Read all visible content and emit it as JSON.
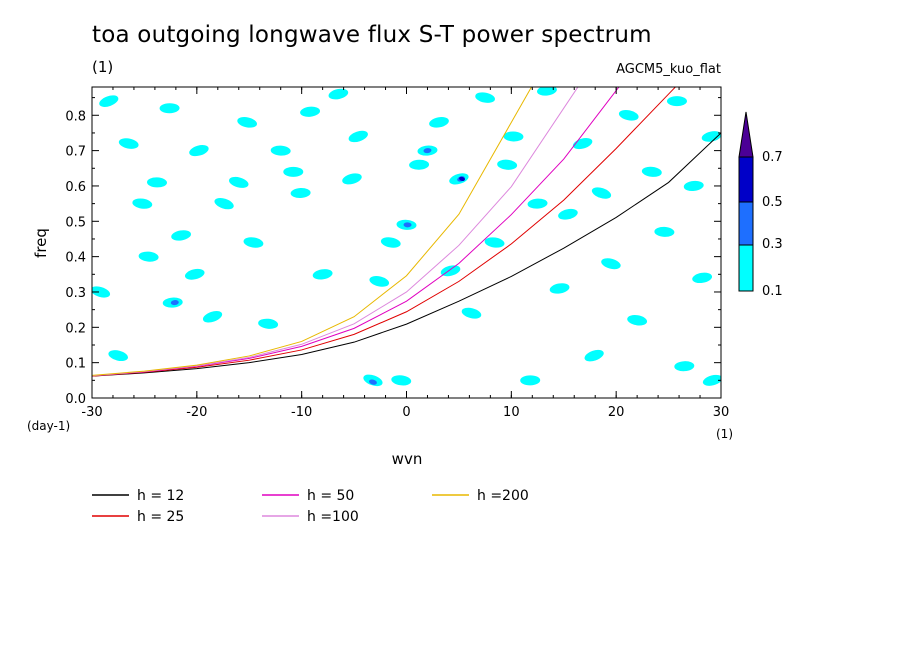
{
  "title": "toa outgoing longwave flux S-T power spectrum",
  "subtitle_left": "(1)",
  "subtitle_right": "AGCM5_kuo_flat",
  "colors": {
    "c01": "#00ffff",
    "c03": "#1e6fff",
    "c05": "#0000c8",
    "c07": "#4b0096"
  },
  "colorbar": {
    "levels": [
      "0.1",
      "0.3",
      "0.5",
      "0.7"
    ]
  },
  "chart_data": {
    "type": "line",
    "title": "toa outgoing longwave flux S-T power spectrum",
    "xlabel": "wvn",
    "ylabel": "freq",
    "x_unit_label": "(1)",
    "y_unit_label": "(day-1)",
    "xlim": [
      -30,
      30
    ],
    "ylim": [
      0,
      0.88
    ],
    "xticks": [
      -30,
      -20,
      -10,
      0,
      10,
      20,
      30
    ],
    "xtick_labels": [
      "-30",
      "-20",
      "-10",
      "0",
      "10",
      "20",
      "30"
    ],
    "yticks": [
      0,
      0.1,
      0.2,
      0.3,
      0.4,
      0.5,
      0.6,
      0.7,
      0.8
    ],
    "ytick_labels": [
      "0.0",
      "0.1",
      "0.2",
      "0.3",
      "0.4",
      "0.5",
      "0.6",
      "0.7",
      "0.8"
    ],
    "x": [
      -30,
      -25,
      -20,
      -15,
      -10,
      -5,
      0,
      5,
      10,
      15,
      20,
      25,
      30
    ],
    "series": [
      {
        "name": "h = 12",
        "color": "#000000",
        "values": [
          0.062,
          0.071,
          0.083,
          0.1,
          0.123,
          0.158,
          0.209,
          0.274,
          0.344,
          0.424,
          0.511,
          0.61,
          0.75
        ]
      },
      {
        "name": "h = 25",
        "color": "#e00000",
        "values": [
          0.062,
          0.073,
          0.087,
          0.107,
          0.136,
          0.18,
          0.244,
          0.33,
          0.436,
          0.56,
          0.706,
          0.86,
          null
        ]
      },
      {
        "name": "h = 50",
        "color": "#e000c0",
        "values": [
          0.063,
          0.074,
          0.09,
          0.112,
          0.146,
          0.197,
          0.274,
          0.381,
          0.519,
          0.676,
          0.87,
          null,
          null
        ]
      },
      {
        "name": "h =100",
        "color": "#dd88dd",
        "values": [
          0.063,
          0.075,
          0.091,
          0.115,
          0.152,
          0.21,
          0.3,
          0.432,
          0.598,
          0.82,
          null,
          null,
          null
        ]
      },
      {
        "name": "h =200",
        "color": "#e8b800",
        "values": [
          0.064,
          0.076,
          0.093,
          0.119,
          0.16,
          0.23,
          0.346,
          0.52,
          0.78,
          null,
          null,
          null,
          null
        ]
      }
    ],
    "contours": {
      "levels": [
        0.1,
        0.3,
        0.5,
        0.7
      ],
      "patches": [
        {
          "x": -28.4,
          "y": 0.84,
          "level": 0.1
        },
        {
          "x": -29.2,
          "y": 0.3,
          "level": 0.1
        },
        {
          "x": -27.5,
          "y": 0.12,
          "level": 0.1
        },
        {
          "x": -26.5,
          "y": 0.72,
          "level": 0.1
        },
        {
          "x": -25.2,
          "y": 0.55,
          "level": 0.1
        },
        {
          "x": -24.6,
          "y": 0.4,
          "level": 0.1
        },
        {
          "x": -23.8,
          "y": 0.61,
          "level": 0.1
        },
        {
          "x": -22.6,
          "y": 0.82,
          "level": 0.1
        },
        {
          "x": -22.3,
          "y": 0.27,
          "level": 0.1
        },
        {
          "x": -22.1,
          "y": 0.27,
          "level": 0.3
        },
        {
          "x": -21.5,
          "y": 0.46,
          "level": 0.1
        },
        {
          "x": -20.2,
          "y": 0.35,
          "level": 0.1
        },
        {
          "x": -19.8,
          "y": 0.7,
          "level": 0.1
        },
        {
          "x": -18.5,
          "y": 0.23,
          "level": 0.1
        },
        {
          "x": -17.4,
          "y": 0.55,
          "level": 0.1
        },
        {
          "x": -16.0,
          "y": 0.61,
          "level": 0.1
        },
        {
          "x": -15.2,
          "y": 0.78,
          "level": 0.1
        },
        {
          "x": -14.6,
          "y": 0.44,
          "level": 0.1
        },
        {
          "x": -13.2,
          "y": 0.21,
          "level": 0.1
        },
        {
          "x": -12.0,
          "y": 0.7,
          "level": 0.1
        },
        {
          "x": -10.8,
          "y": 0.64,
          "level": 0.1
        },
        {
          "x": -10.1,
          "y": 0.58,
          "level": 0.1
        },
        {
          "x": -9.2,
          "y": 0.81,
          "level": 0.1
        },
        {
          "x": -8.0,
          "y": 0.35,
          "level": 0.1
        },
        {
          "x": -6.5,
          "y": 0.86,
          "level": 0.1
        },
        {
          "x": -5.2,
          "y": 0.62,
          "level": 0.1
        },
        {
          "x": -4.6,
          "y": 0.74,
          "level": 0.1
        },
        {
          "x": -3.2,
          "y": 0.05,
          "level": 0.1
        },
        {
          "x": -3.2,
          "y": 0.045,
          "level": 0.3
        },
        {
          "x": -2.6,
          "y": 0.33,
          "level": 0.1
        },
        {
          "x": -1.5,
          "y": 0.44,
          "level": 0.1
        },
        {
          "x": -0.5,
          "y": 0.05,
          "level": 0.1
        },
        {
          "x": 0.0,
          "y": 0.49,
          "level": 0.1
        },
        {
          "x": 0.1,
          "y": 0.49,
          "level": 0.3
        },
        {
          "x": 1.2,
          "y": 0.66,
          "level": 0.1
        },
        {
          "x": 2.0,
          "y": 0.7,
          "level": 0.1
        },
        {
          "x": 2.0,
          "y": 0.7,
          "level": 0.3
        },
        {
          "x": 3.1,
          "y": 0.78,
          "level": 0.1
        },
        {
          "x": 4.2,
          "y": 0.36,
          "level": 0.1
        },
        {
          "x": 5.0,
          "y": 0.62,
          "level": 0.1
        },
        {
          "x": 5.2,
          "y": 0.62,
          "level": 0.3
        },
        {
          "x": 5.3,
          "y": 0.62,
          "level": 0.5
        },
        {
          "x": 6.2,
          "y": 0.24,
          "level": 0.1
        },
        {
          "x": 7.5,
          "y": 0.85,
          "level": 0.1
        },
        {
          "x": 8.4,
          "y": 0.44,
          "level": 0.1
        },
        {
          "x": 9.6,
          "y": 0.66,
          "level": 0.1
        },
        {
          "x": 10.2,
          "y": 0.74,
          "level": 0.1
        },
        {
          "x": 11.8,
          "y": 0.05,
          "level": 0.1
        },
        {
          "x": 12.5,
          "y": 0.55,
          "level": 0.1
        },
        {
          "x": 13.4,
          "y": 0.87,
          "level": 0.1
        },
        {
          "x": 14.6,
          "y": 0.31,
          "level": 0.1
        },
        {
          "x": 15.4,
          "y": 0.52,
          "level": 0.1
        },
        {
          "x": 16.8,
          "y": 0.72,
          "level": 0.1
        },
        {
          "x": 17.9,
          "y": 0.12,
          "level": 0.1
        },
        {
          "x": 18.6,
          "y": 0.58,
          "level": 0.1
        },
        {
          "x": 19.5,
          "y": 0.38,
          "level": 0.1
        },
        {
          "x": 21.2,
          "y": 0.8,
          "level": 0.1
        },
        {
          "x": 22.0,
          "y": 0.22,
          "level": 0.1
        },
        {
          "x": 23.4,
          "y": 0.64,
          "level": 0.1
        },
        {
          "x": 24.6,
          "y": 0.47,
          "level": 0.1
        },
        {
          "x": 25.8,
          "y": 0.84,
          "level": 0.1
        },
        {
          "x": 26.5,
          "y": 0.09,
          "level": 0.1
        },
        {
          "x": 27.4,
          "y": 0.6,
          "level": 0.1
        },
        {
          "x": 28.2,
          "y": 0.34,
          "level": 0.1
        },
        {
          "x": 29.1,
          "y": 0.74,
          "level": 0.1
        },
        {
          "x": 29.2,
          "y": 0.05,
          "level": 0.1
        }
      ]
    },
    "legend": {
      "entries": [
        "h = 12",
        "h = 25",
        "h = 50",
        "h =100",
        "h =200"
      ],
      "position": "bottom"
    },
    "grid": false
  }
}
